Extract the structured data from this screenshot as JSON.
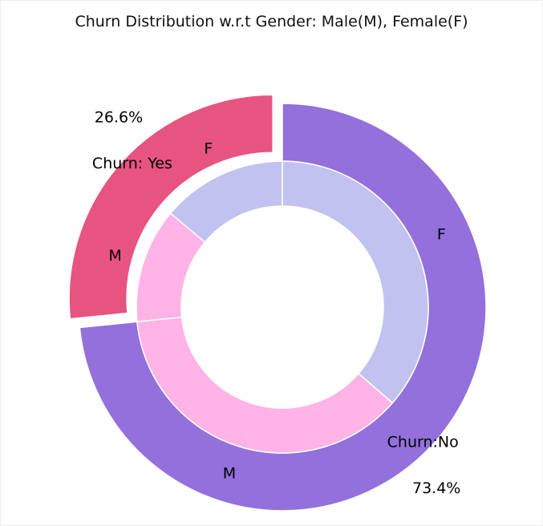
{
  "chart_data": {
    "type": "pie",
    "title": "Churn Distribution w.r.t Gender: Male(M), Female(F)",
    "outer": {
      "labels": [
        "Churn: Yes",
        "Churn:No"
      ],
      "values": [
        26.6,
        73.4
      ],
      "percent_labels": [
        "26.6%",
        "73.4%"
      ],
      "colors": [
        "#e75480",
        "#9370db"
      ],
      "exploded": [
        "Churn: Yes"
      ]
    },
    "inner": {
      "labels": [
        "F",
        "M",
        "M",
        "F"
      ],
      "groups": [
        "Churn: Yes",
        "Churn: Yes",
        "Churn:No",
        "Churn:No"
      ],
      "values": [
        13.9,
        12.7,
        37.0,
        36.4
      ],
      "colors": [
        "#c2c2f0",
        "#ffb3e6",
        "#ffb3e6",
        "#c2c2f0"
      ]
    }
  }
}
